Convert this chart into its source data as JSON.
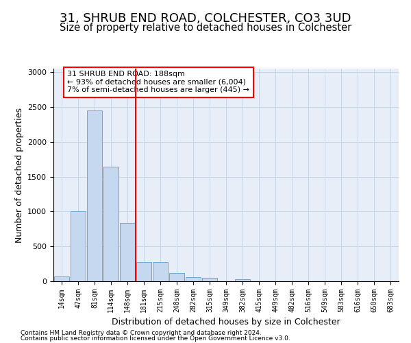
{
  "title": "31, SHRUB END ROAD, COLCHESTER, CO3 3UD",
  "subtitle": "Size of property relative to detached houses in Colchester",
  "xlabel": "Distribution of detached houses by size in Colchester",
  "ylabel": "Number of detached properties",
  "bar_labels": [
    "14sqm",
    "47sqm",
    "81sqm",
    "114sqm",
    "148sqm",
    "181sqm",
    "215sqm",
    "248sqm",
    "282sqm",
    "315sqm",
    "349sqm",
    "382sqm",
    "415sqm",
    "449sqm",
    "482sqm",
    "516sqm",
    "549sqm",
    "583sqm",
    "616sqm",
    "650sqm",
    "683sqm"
  ],
  "bar_values": [
    70,
    1000,
    2450,
    1640,
    840,
    280,
    275,
    120,
    60,
    50,
    0,
    30,
    0,
    0,
    0,
    0,
    0,
    0,
    0,
    0,
    0
  ],
  "bar_color": "#c5d8ef",
  "bar_edge_color": "#6aaad4",
  "vline_index": 5,
  "vline_color": "red",
  "annotation_text": "31 SHRUB END ROAD: 188sqm\n← 93% of detached houses are smaller (6,004)\n7% of semi-detached houses are larger (445) →",
  "annotation_box_color": "white",
  "annotation_box_edge_color": "red",
  "ylim": [
    0,
    3050
  ],
  "yticks": [
    0,
    500,
    1000,
    1500,
    2000,
    2500,
    3000
  ],
  "footer1": "Contains HM Land Registry data © Crown copyright and database right 2024.",
  "footer2": "Contains public sector information licensed under the Open Government Licence v3.0.",
  "bg_color": "#e8eef8",
  "grid_color": "#c8d4e8"
}
